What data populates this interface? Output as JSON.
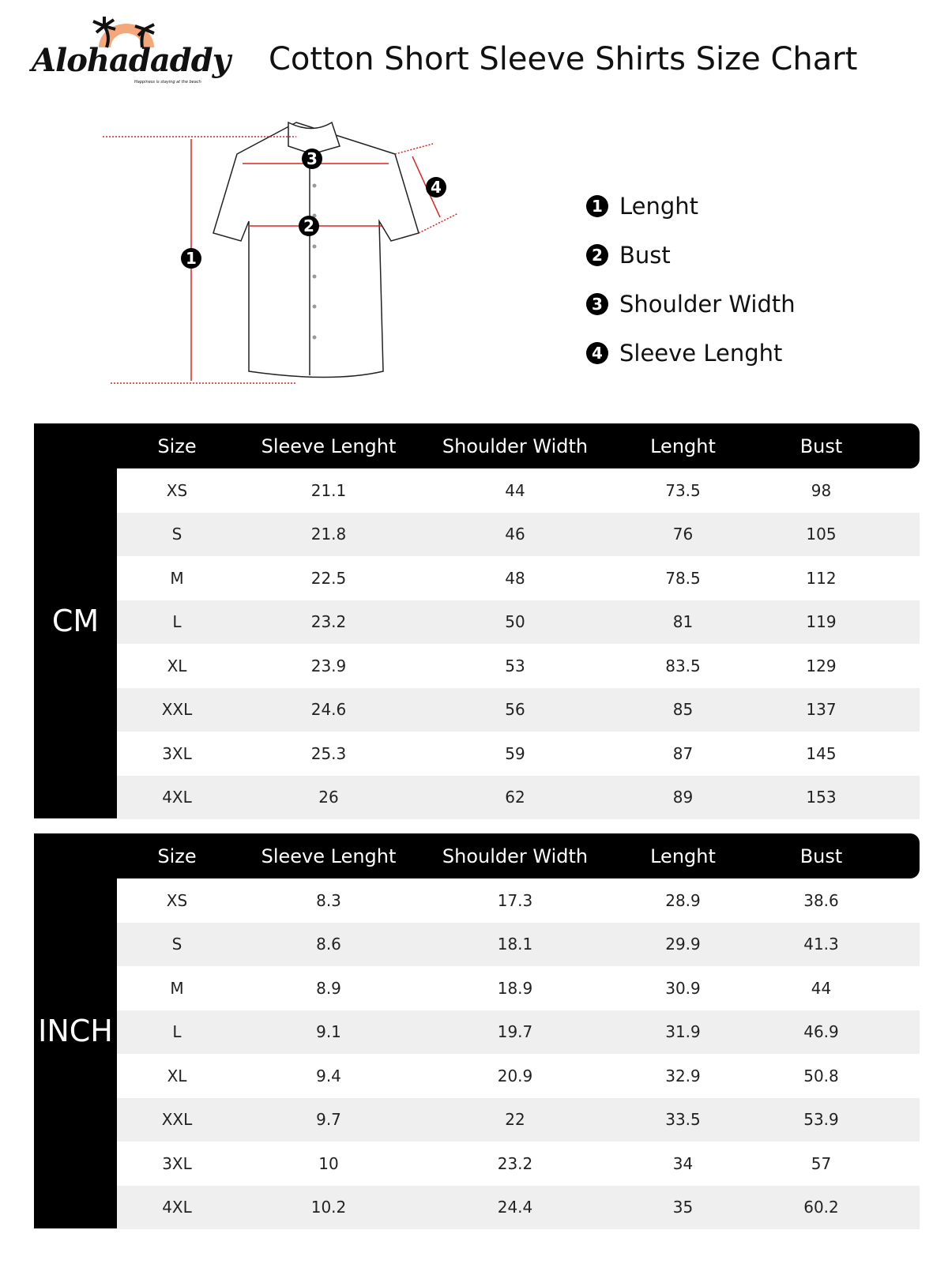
{
  "brand": {
    "name": "Alohadaddy",
    "tagline": "Happiness is staying at the beach",
    "accent": "#f4a77a"
  },
  "title": "Cotton Short Sleeve Shirts Size Chart",
  "legend": [
    {
      "num": "1",
      "label": "Lenght"
    },
    {
      "num": "2",
      "label": "Bust"
    },
    {
      "num": "3",
      "label": "Shoulder Width"
    },
    {
      "num": "4",
      "label": "Sleeve Lenght"
    }
  ],
  "headers": [
    "Size",
    "Sleeve Lenght",
    "Shoulder Width",
    "Lenght",
    "Bust"
  ],
  "tables": [
    {
      "unit": "CM",
      "rows": [
        [
          "XS",
          "21.1",
          "44",
          "73.5",
          "98"
        ],
        [
          "S",
          "21.8",
          "46",
          "76",
          "105"
        ],
        [
          "M",
          "22.5",
          "48",
          "78.5",
          "112"
        ],
        [
          "L",
          "23.2",
          "50",
          "81",
          "119"
        ],
        [
          "XL",
          "23.9",
          "53",
          "83.5",
          "129"
        ],
        [
          "XXL",
          "24.6",
          "56",
          "85",
          "137"
        ],
        [
          "3XL",
          "25.3",
          "59",
          "87",
          "145"
        ],
        [
          "4XL",
          "26",
          "62",
          "89",
          "153"
        ]
      ]
    },
    {
      "unit": "INCH",
      "rows": [
        [
          "XS",
          "8.3",
          "17.3",
          "28.9",
          "38.6"
        ],
        [
          "S",
          "8.6",
          "18.1",
          "29.9",
          "41.3"
        ],
        [
          "M",
          "8.9",
          "18.9",
          "30.9",
          "44"
        ],
        [
          "L",
          "9.1",
          "19.7",
          "31.9",
          "46.9"
        ],
        [
          "XL",
          "9.4",
          "20.9",
          "32.9",
          "50.8"
        ],
        [
          "XXL",
          "9.7",
          "22",
          "33.5",
          "53.9"
        ],
        [
          "3XL",
          "10",
          "23.2",
          "34",
          "57"
        ],
        [
          "4XL",
          "10.2",
          "24.4",
          "35",
          "60.2"
        ]
      ]
    }
  ]
}
